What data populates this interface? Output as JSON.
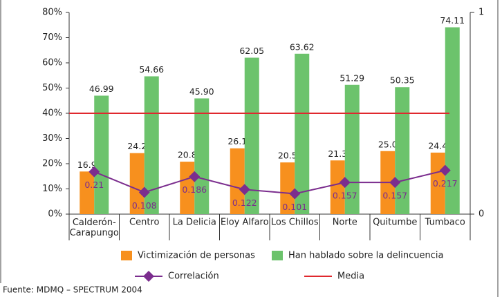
{
  "chart_data": {
    "type": "bar",
    "categories": [
      "Calderón-Carapungo",
      "Centro",
      "La Delicia",
      "Eloy Alfaro",
      "Los Chillos",
      "Norte",
      "Quitumbe",
      "Tumbaco"
    ],
    "series": [
      {
        "name": "Victimización de personas",
        "color": "#f7901e",
        "values": [
          16.9,
          24.2,
          20.8,
          26.1,
          20.5,
          21.3,
          25.0,
          24.4
        ],
        "value_labels": [
          "16.9",
          "24.2",
          "20.8",
          "26.1",
          "20.5",
          "21.3",
          "25.0",
          "24.4"
        ]
      },
      {
        "name": "Han hablado sobre la delincuencia",
        "color": "#6cc36c",
        "values": [
          46.99,
          54.66,
          45.9,
          62.05,
          63.62,
          51.29,
          50.35,
          74.11
        ],
        "value_labels": [
          "46.99",
          "54.66",
          "45.90",
          "62.05",
          "63.62",
          "51.29",
          "50.35",
          "74.11"
        ]
      },
      {
        "name": "Correlación",
        "type": "line",
        "axis": "y2",
        "color": "#7b2d8e",
        "values": [
          0.21,
          0.108,
          0.186,
          0.122,
          0.101,
          0.157,
          0.157,
          0.217
        ]
      }
    ],
    "reference_line": {
      "name": "Media",
      "value": 40,
      "color": "#e0282e"
    },
    "ylim": [
      0,
      80
    ],
    "yticks": [
      {
        "value": 0,
        "label": "0%"
      },
      {
        "value": 10,
        "label": "10%"
      },
      {
        "value": 20,
        "label": "20%"
      },
      {
        "value": 30,
        "label": "30%"
      },
      {
        "value": 40,
        "label": "40%"
      },
      {
        "value": 50,
        "label": "50%"
      },
      {
        "value": 60,
        "label": "60%"
      },
      {
        "value": 70,
        "label": "70%"
      },
      {
        "value": 80,
        "label": "80%"
      }
    ],
    "y2lim": [
      0,
      1
    ],
    "y2ticks": [
      0,
      1
    ],
    "source": "Fuente: MDMQ – SPECTRUM 2004"
  }
}
